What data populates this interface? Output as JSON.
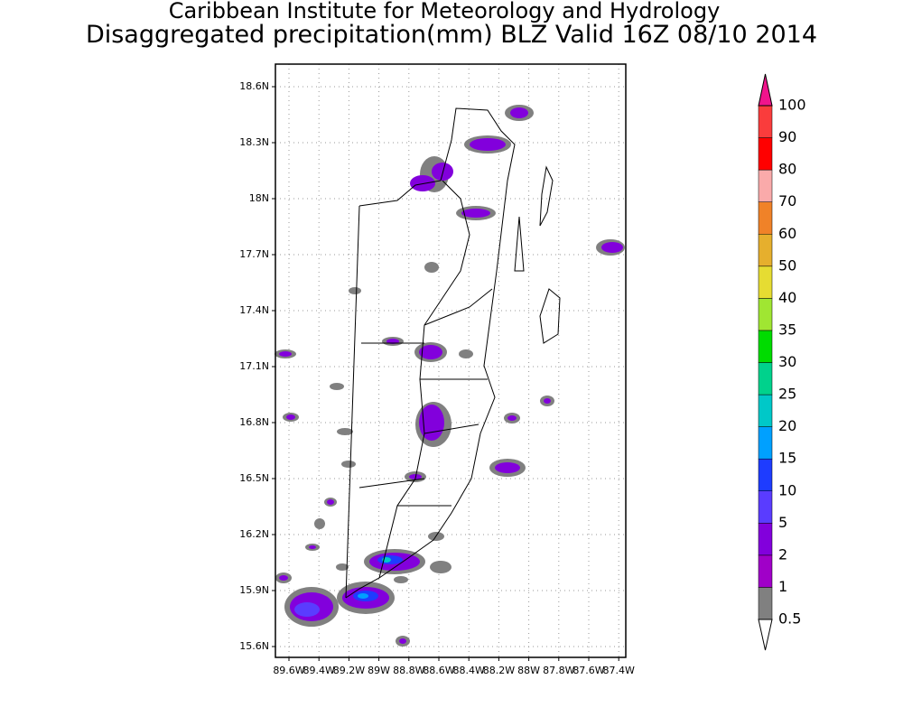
{
  "title": "Caribbean Institute for Meteorology and Hydrology",
  "subtitle": "Disaggregated precipitation(mm) BLZ Valid 16Z 08/10 2014",
  "map": {
    "lat_labels": [
      "18.6N",
      "18.3N",
      "18N",
      "17.7N",
      "17.4N",
      "17.1N",
      "16.8N",
      "16.5N",
      "16.2N",
      "15.9N",
      "15.6N"
    ],
    "lon_labels": [
      "89.6W",
      "89.4W",
      "89.2W",
      "89W",
      "88.8W",
      "88.6W",
      "88.4W",
      "88.2W",
      "88W",
      "87.8W",
      "87.6W",
      "87.4W"
    ]
  },
  "colorbar": {
    "levels": [
      0.5,
      1,
      2,
      5,
      10,
      15,
      20,
      25,
      30,
      35,
      40,
      50,
      60,
      70,
      80,
      90,
      100
    ],
    "colors": [
      "#808080",
      "#a000c8",
      "#8200dc",
      "#5a3cff",
      "#1e3cff",
      "#00a0ff",
      "#00c8c8",
      "#00d28c",
      "#00dc00",
      "#a0e632",
      "#e6dc32",
      "#e6af2d",
      "#f08228",
      "#faaaaa",
      "#ff0000",
      "#fa3c3c"
    ],
    "below_color": "#ffffff",
    "above_color": "#f0148c"
  }
}
